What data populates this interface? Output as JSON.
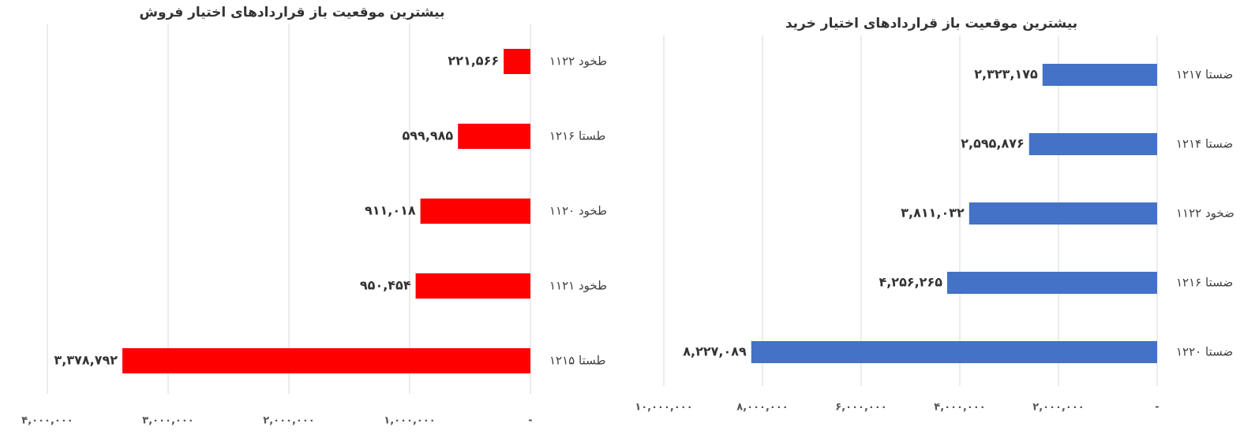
{
  "chart_data": [
    {
      "type": "bar",
      "orientation": "horizontal",
      "x_reversed": true,
      "title": "بیشترین موقعیت باز قراردادهای اختیار فروش",
      "categories": [
        "طخود ۱۱۲۲",
        "طستا ۱۲۱۶",
        "طخود ۱۱۲۰",
        "طخود ۱۱۲۱",
        "طستا ۱۲۱۵"
      ],
      "values": [
        221566,
        599985,
        911018,
        950454,
        3378792
      ],
      "value_labels": [
        "۲۲۱,۵۶۶",
        "۵۹۹,۹۸۵",
        "۹۱۱,۰۱۸",
        "۹۵۰,۴۵۴",
        "۳,۳۷۸,۷۹۲"
      ],
      "color": "#ff0000",
      "xlim": [
        0,
        4000000
      ],
      "xticks": [
        {
          "value": 0,
          "label": "-"
        },
        {
          "value": 1000000,
          "label": "۱,۰۰۰,۰۰۰"
        },
        {
          "value": 2000000,
          "label": "۲,۰۰۰,۰۰۰"
        },
        {
          "value": 3000000,
          "label": "۳,۰۰۰,۰۰۰"
        },
        {
          "value": 4000000,
          "label": "۴,۰۰۰,۰۰۰"
        }
      ],
      "grid": true
    },
    {
      "type": "bar",
      "orientation": "horizontal",
      "x_reversed": true,
      "title": "بیشترین موقعیت باز قراردادهای اختیار خرید",
      "categories": [
        "ضستا ۱۲۱۷",
        "ضستا ۱۲۱۴",
        "ضخود ۱۱۲۲",
        "ضستا ۱۲۱۶",
        "ضستا ۱۲۲۰"
      ],
      "values": [
        2323175,
        2595876,
        3811032,
        4256265,
        8227089
      ],
      "value_labels": [
        "۲,۳۲۳,۱۷۵",
        "۲,۵۹۵,۸۷۶",
        "۳,۸۱۱,۰۳۲",
        "۴,۲۵۶,۲۶۵",
        "۸,۲۲۷,۰۸۹"
      ],
      "color": "#4472c4",
      "xlim": [
        0,
        10000000
      ],
      "xticks": [
        {
          "value": 0,
          "label": "-"
        },
        {
          "value": 2000000,
          "label": "۲,۰۰۰,۰۰۰"
        },
        {
          "value": 4000000,
          "label": "۴,۰۰۰,۰۰۰"
        },
        {
          "value": 6000000,
          "label": "۶,۰۰۰,۰۰۰"
        },
        {
          "value": 8000000,
          "label": "۸,۰۰۰,۰۰۰"
        },
        {
          "value": 10000000,
          "label": "۱۰,۰۰۰,۰۰۰"
        }
      ],
      "grid": true
    }
  ]
}
